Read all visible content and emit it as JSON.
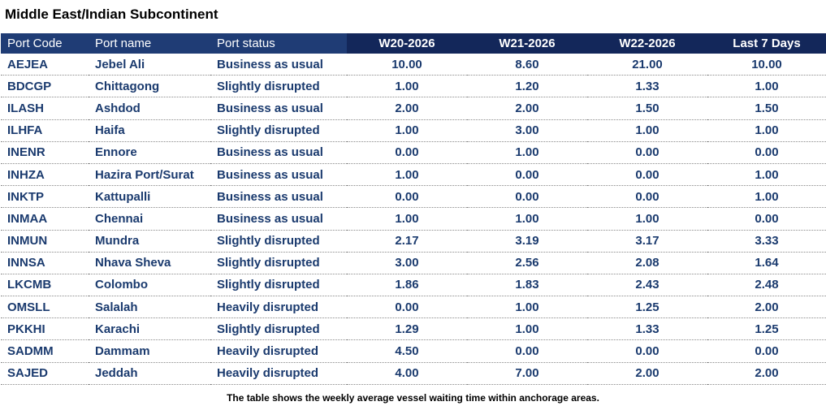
{
  "title": "Middle East/Indian Subcontinent",
  "columns": [
    "Port Code",
    "Port name",
    "Port status",
    "W20-2026",
    "W21-2026",
    "W22-2026",
    "Last 7 Days"
  ],
  "rows": [
    [
      "AEJEA",
      "Jebel Ali",
      "Business as usual",
      "10.00",
      "8.60",
      "21.00",
      "10.00"
    ],
    [
      "BDCGP",
      "Chittagong",
      "Slightly disrupted",
      "1.00",
      "1.20",
      "1.33",
      "1.00"
    ],
    [
      "ILASH",
      "Ashdod",
      "Business as usual",
      "2.00",
      "2.00",
      "1.50",
      "1.50"
    ],
    [
      "ILHFA",
      "Haifa",
      "Slightly disrupted",
      "1.00",
      "3.00",
      "1.00",
      "1.00"
    ],
    [
      "INENR",
      "Ennore",
      "Business as usual",
      "0.00",
      "1.00",
      "0.00",
      "0.00"
    ],
    [
      "INHZA",
      "Hazira Port/Surat",
      "Business as usual",
      "1.00",
      "0.00",
      "0.00",
      "1.00"
    ],
    [
      "INKTP",
      "Kattupalli",
      "Business as usual",
      "0.00",
      "0.00",
      "0.00",
      "1.00"
    ],
    [
      "INMAA",
      "Chennai",
      "Business as usual",
      "1.00",
      "1.00",
      "1.00",
      "0.00"
    ],
    [
      "INMUN",
      "Mundra",
      "Slightly disrupted",
      "2.17",
      "3.19",
      "3.17",
      "3.33"
    ],
    [
      "INNSA",
      "Nhava Sheva",
      "Slightly disrupted",
      "3.00",
      "2.56",
      "2.08",
      "1.64"
    ],
    [
      "LKCMB",
      "Colombo",
      "Slightly disrupted",
      "1.86",
      "1.83",
      "2.43",
      "2.48"
    ],
    [
      "OMSLL",
      "Salalah",
      "Heavily disrupted",
      "0.00",
      "1.00",
      "1.25",
      "2.00"
    ],
    [
      "PKKHI",
      "Karachi",
      "Slightly disrupted",
      "1.29",
      "1.00",
      "1.33",
      "1.25"
    ],
    [
      "SADMM",
      "Dammam",
      "Heavily disrupted",
      "4.50",
      "0.00",
      "0.00",
      "0.00"
    ],
    [
      "SAJED",
      "Jeddah",
      "Heavily disrupted",
      "4.00",
      "7.00",
      "2.00",
      "2.00"
    ]
  ],
  "footnote": "The table shows the weekly average vessel waiting time within anchorage areas.",
  "colors": {
    "header_left": "#1f3c75",
    "header_right": "#13275a",
    "body_text": "#1a3a6e"
  }
}
